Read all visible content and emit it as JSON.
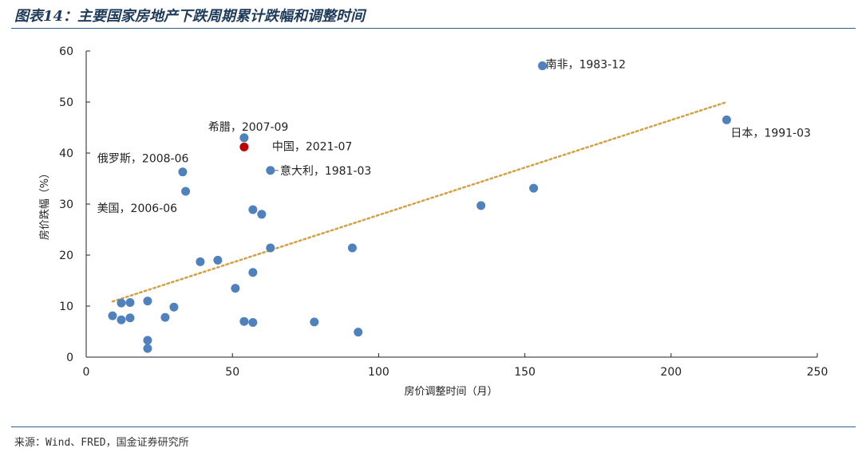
{
  "header": {
    "title": "图表14：主要国家房地产下跌周期累计跌幅和调整时间"
  },
  "footer": {
    "source": "来源：Wind、FRED，国金证券研究所"
  },
  "chart_data": {
    "type": "scatter",
    "title": "",
    "xlabel": "房价调整时间（月）",
    "ylabel": "房价跌幅（%）",
    "xlim": [
      0,
      250
    ],
    "ylim": [
      0,
      60
    ],
    "xticks": [
      "0",
      "50",
      "100",
      "150",
      "200",
      "250"
    ],
    "yticks": [
      "0",
      "10",
      "20",
      "30",
      "40",
      "50",
      "60"
    ],
    "grid": false,
    "colors": {
      "point": "#4f81bd",
      "highlight": "#c00000",
      "trend": "#d4a043"
    },
    "points": [
      {
        "x": 9,
        "y": 8.1
      },
      {
        "x": 12,
        "y": 10.6
      },
      {
        "x": 12,
        "y": 7.3
      },
      {
        "x": 15,
        "y": 10.7
      },
      {
        "x": 15,
        "y": 7.7
      },
      {
        "x": 21,
        "y": 11.0
      },
      {
        "x": 21,
        "y": 3.3
      },
      {
        "x": 21,
        "y": 1.7
      },
      {
        "x": 27,
        "y": 7.8
      },
      {
        "x": 30,
        "y": 9.8
      },
      {
        "x": 33,
        "y": 36.3
      },
      {
        "x": 34,
        "y": 32.5
      },
      {
        "x": 39,
        "y": 18.7
      },
      {
        "x": 45,
        "y": 19.0
      },
      {
        "x": 51,
        "y": 13.5
      },
      {
        "x": 54,
        "y": 43.0
      },
      {
        "x": 54,
        "y": 7.0
      },
      {
        "x": 57,
        "y": 28.9
      },
      {
        "x": 57,
        "y": 16.6
      },
      {
        "x": 57,
        "y": 6.8
      },
      {
        "x": 60,
        "y": 28.0
      },
      {
        "x": 63,
        "y": 36.6
      },
      {
        "x": 63,
        "y": 21.4
      },
      {
        "x": 78,
        "y": 6.9
      },
      {
        "x": 91,
        "y": 21.4
      },
      {
        "x": 93,
        "y": 4.9
      },
      {
        "x": 135,
        "y": 29.7
      },
      {
        "x": 153,
        "y": 33.1
      },
      {
        "x": 156,
        "y": 57.1
      },
      {
        "x": 219,
        "y": 46.5
      }
    ],
    "highlight": [
      {
        "x": 54,
        "y": 41.2
      }
    ],
    "trendline": {
      "x": [
        9,
        219
      ],
      "y": [
        10.9,
        50.0
      ]
    },
    "annotations": [
      {
        "text": "南非，1983-12",
        "x": 156,
        "y": 57.1
      },
      {
        "text": "日本，1991-03",
        "x": 219,
        "y": 46.5
      },
      {
        "text": "希腊，2007-09",
        "x": 54,
        "y": 43.0
      },
      {
        "text": "中国，2021-07",
        "x": 54,
        "y": 41.2
      },
      {
        "text": "俄罗斯，2008-06",
        "x": 33,
        "y": 36.3
      },
      {
        "text": "意大利，1981-03",
        "x": 63,
        "y": 36.6
      },
      {
        "text": "美国，2006-06",
        "x": 34,
        "y": 32.5
      }
    ]
  }
}
